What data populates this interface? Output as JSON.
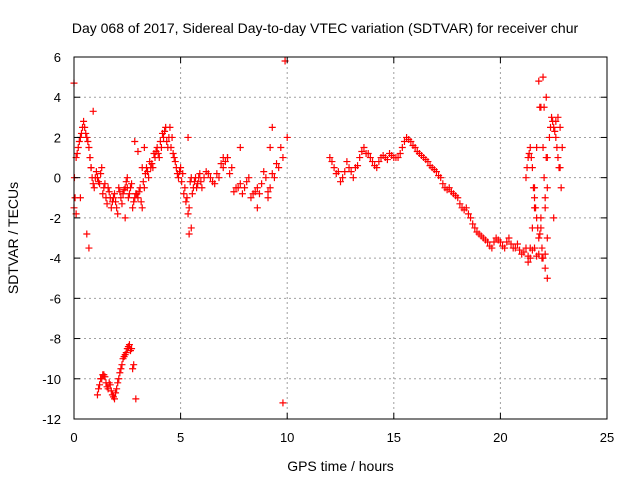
{
  "chart_data": {
    "type": "scatter",
    "title": "Day 068 of 2017, Sidereal Day-to-day VTEC variation (SDTVAR) for receiver chur",
    "xlabel": "GPS time / hours",
    "ylabel": "SDTVAR / TECUs",
    "xlim": [
      0,
      25
    ],
    "ylim": [
      -12,
      6
    ],
    "xticks": [
      0,
      5,
      10,
      15,
      20,
      25
    ],
    "yticks": [
      -12,
      -10,
      -8,
      -6,
      -4,
      -2,
      0,
      2,
      4,
      6
    ],
    "grid": true,
    "marker": "+",
    "color": "#ff0000",
    "series": [
      {
        "name": "SDTVAR",
        "x": [
          0.0,
          0.1,
          0.2,
          0.3,
          0.4,
          0.5,
          0.6,
          0.7,
          0.8,
          0.9,
          1.0,
          1.1,
          1.2,
          1.3,
          1.4,
          1.5,
          1.6,
          1.7,
          1.8,
          1.9,
          2.0,
          2.1,
          2.2,
          2.3,
          2.4,
          2.5,
          2.6,
          2.7,
          2.8,
          2.9,
          3.0,
          3.1,
          3.2,
          3.3,
          3.4,
          3.5,
          3.6,
          3.7,
          3.8,
          3.9,
          4.0,
          4.1,
          4.2,
          4.3,
          4.4,
          4.5,
          4.6,
          4.7,
          4.8,
          4.9,
          5.0,
          5.1,
          5.2,
          5.3,
          5.4,
          5.5,
          5.6,
          5.7,
          5.8,
          5.9,
          6.0,
          6.2,
          6.4,
          6.6,
          6.8,
          7.0,
          7.2,
          7.4,
          7.6,
          7.8,
          8.0,
          8.2,
          8.4,
          8.6,
          8.8,
          9.0,
          9.2,
          9.4,
          9.6,
          9.8,
          10.0,
          0.05,
          0.15,
          0.25,
          0.35,
          0.45,
          0.55,
          0.65,
          0.75,
          0.85,
          0.95,
          1.05,
          1.15,
          1.25,
          1.35,
          1.45,
          1.55,
          1.65,
          1.75,
          1.85,
          1.95,
          2.05,
          2.15,
          2.25,
          2.35,
          2.45,
          2.55,
          2.65,
          2.75,
          2.85,
          2.95,
          3.05,
          3.15,
          3.25,
          3.35,
          3.45,
          3.55,
          3.65,
          3.75,
          3.85,
          3.95,
          4.05,
          4.15,
          4.25,
          4.35,
          4.45,
          4.55,
          4.65,
          4.75,
          4.85,
          4.95,
          5.05,
          5.15,
          5.25,
          5.35,
          5.45,
          5.55,
          5.65,
          5.75,
          5.85,
          5.95,
          6.1,
          6.3,
          6.5,
          6.7,
          6.9,
          7.1,
          7.3,
          7.5,
          7.7,
          7.9,
          8.1,
          8.3,
          8.5,
          8.7,
          8.9,
          9.1,
          9.3,
          9.5,
          9.7,
          9.9,
          0.0,
          0.02,
          0.1,
          0.3,
          0.6,
          0.7,
          0.75,
          0.8,
          0.9,
          3.3,
          3.2,
          2.5,
          2.4,
          5.5,
          5.4,
          5.35,
          7.2,
          7.0,
          7.8,
          8.6,
          9.1,
          9.2,
          9.3,
          9.8,
          1.1,
          1.2,
          1.3,
          1.4,
          1.5,
          1.6,
          1.7,
          1.8,
          1.9,
          2.0,
          2.1,
          2.2,
          2.3,
          2.4,
          2.5,
          2.6,
          2.7,
          2.8,
          2.9,
          1.15,
          1.25,
          1.35,
          1.45,
          1.55,
          1.65,
          1.75,
          1.85,
          1.95,
          2.05,
          2.15,
          2.25,
          2.35,
          2.45,
          2.55,
          2.65,
          2.75,
          2.85,
          3.0,
          12.0,
          12.2,
          12.4,
          12.6,
          12.8,
          13.0,
          13.2,
          13.4,
          13.6,
          13.8,
          14.0,
          14.2,
          14.4,
          14.6,
          14.8,
          15.0,
          15.2,
          15.4,
          15.6,
          15.8,
          16.0,
          16.2,
          16.4,
          16.6,
          16.8,
          17.0,
          17.2,
          17.4,
          17.6,
          17.8,
          18.0,
          18.2,
          18.4,
          18.6,
          18.8,
          19.0,
          19.2,
          19.4,
          19.6,
          19.8,
          20.0,
          20.2,
          20.4,
          20.6,
          20.8,
          21.0,
          21.2,
          21.4,
          21.6,
          21.8,
          22.0,
          22.2,
          12.1,
          12.3,
          12.5,
          12.7,
          12.9,
          13.1,
          13.3,
          13.5,
          13.7,
          13.9,
          14.1,
          14.3,
          14.5,
          14.7,
          14.9,
          15.1,
          15.3,
          15.5,
          15.7,
          15.9,
          16.1,
          16.3,
          16.5,
          16.7,
          16.9,
          17.1,
          17.3,
          17.5,
          17.7,
          17.9,
          18.1,
          18.3,
          18.5,
          18.7,
          18.9,
          19.1,
          19.3,
          19.5,
          19.7,
          19.9,
          20.1,
          20.3,
          20.5,
          20.7,
          20.9,
          21.1,
          21.3,
          21.5,
          21.7,
          21.9,
          22.1,
          21.2,
          21.3,
          21.4,
          21.5,
          21.6,
          21.7,
          21.8,
          21.9,
          22.0,
          22.1,
          22.2,
          21.25,
          21.35,
          21.45,
          21.55,
          21.65,
          21.75,
          21.85,
          21.95,
          22.05,
          22.15,
          21.9,
          22.0,
          22.1,
          22.2,
          21.8,
          21.85,
          21.95,
          22.05,
          22.15,
          22.3,
          22.4,
          22.5,
          22.6,
          22.7,
          22.8,
          22.9,
          22.35,
          22.45,
          22.55,
          22.65,
          22.75,
          22.85,
          21.6,
          21.5,
          21.4,
          21.3,
          22.2,
          22.1,
          21.7,
          21.6,
          22.5,
          22.6,
          22.7,
          22.8
        ],
        "y": [
          -1.5,
          1.0,
          1.5,
          2.0,
          2.5,
          2.5,
          2.0,
          1.5,
          0.5,
          -0.3,
          0.0,
          0.0,
          -0.3,
          0.5,
          -0.5,
          -1.0,
          -0.5,
          -1.0,
          -1.2,
          -0.8,
          -1.5,
          -0.5,
          -1.0,
          -0.8,
          -0.5,
          0.0,
          -0.8,
          -0.3,
          -1.2,
          -0.8,
          -1.0,
          -0.5,
          -1.5,
          -0.5,
          0.5,
          0.0,
          0.5,
          0.5,
          1.0,
          1.5,
          1.0,
          1.5,
          2.0,
          2.5,
          1.5,
          2.5,
          2.0,
          1.0,
          0.5,
          0.0,
          0.5,
          0.2,
          -0.5,
          -1.0,
          -1.5,
          0.0,
          -0.5,
          0.0,
          -0.3,
          0.2,
          -0.5,
          0.3,
          0.0,
          -0.3,
          0.0,
          0.5,
          1.0,
          0.5,
          -0.5,
          -0.3,
          -0.5,
          0.0,
          -0.8,
          -0.5,
          -0.3,
          0.0,
          -0.5,
          0.0,
          0.5,
          1.0,
          2.0,
          -1.0,
          1.2,
          1.8,
          2.2,
          2.8,
          2.2,
          1.8,
          1.0,
          0.0,
          -0.5,
          0.3,
          -0.2,
          0.2,
          -0.8,
          -0.3,
          -1.3,
          -0.7,
          -1.5,
          -1.0,
          -1.2,
          -1.8,
          -0.7,
          -1.3,
          -0.6,
          -0.2,
          -1.0,
          -0.5,
          -1.5,
          -1.0,
          -0.8,
          -0.7,
          -1.2,
          -0.2,
          0.2,
          0.3,
          0.8,
          0.7,
          1.2,
          1.3,
          1.2,
          1.8,
          2.2,
          2.3,
          1.8,
          2.0,
          1.5,
          1.2,
          0.8,
          0.2,
          0.3,
          -0.2,
          -0.8,
          -1.2,
          -1.8,
          -0.2,
          -0.8,
          -0.2,
          -0.5,
          0.0,
          -0.2,
          0.0,
          0.2,
          -0.2,
          0.2,
          0.7,
          0.8,
          0.2,
          -0.7,
          -0.5,
          -0.8,
          -0.2,
          -1.0,
          -0.7,
          -0.8,
          0.3,
          -0.7,
          0.2,
          0.7,
          1.5,
          5.8,
          4.7,
          0.0,
          -1.8,
          -1.0,
          -2.8,
          -3.5,
          1.0,
          0.5,
          3.3,
          1.5,
          0.5,
          -0.5,
          -2.0,
          -2.5,
          -2.8,
          2.0,
          1.0,
          1.0,
          1.5,
          -1.5,
          -1.0,
          1.5,
          2.5,
          -11.2,
          -10.8,
          -10.3,
          -10.0,
          -9.8,
          -10.2,
          -10.5,
          -10.3,
          -10.8,
          -11.0,
          -10.5,
          -10.0,
          -9.5,
          -9.0,
          -8.8,
          -8.5,
          -8.3,
          -8.5,
          -9.3,
          -11.0,
          -10.5,
          -10.0,
          -9.8,
          -9.9,
          -10.4,
          -10.2,
          -10.6,
          -10.9,
          -10.7,
          -10.2,
          -9.7,
          -9.3,
          -8.9,
          -8.7,
          -8.4,
          -8.6,
          -9.5,
          1.8,
          1.3,
          1.0,
          0.5,
          0.3,
          0.0,
          0.8,
          0.3,
          0.5,
          1.0,
          1.5,
          1.2,
          0.8,
          0.5,
          1.0,
          1.0,
          1.2,
          1.0,
          1.0,
          1.5,
          2.0,
          1.8,
          1.5,
          1.2,
          1.0,
          0.8,
          0.5,
          0.3,
          0.0,
          -0.5,
          -0.5,
          -0.8,
          -1.0,
          -1.5,
          -1.5,
          -2.0,
          -2.5,
          -2.8,
          -3.0,
          -3.2,
          -3.5,
          -3.0,
          -3.2,
          -3.5,
          -3.0,
          -3.5,
          -3.3,
          -3.8,
          -3.5,
          -4.0,
          -3.5,
          -3.8,
          1.5,
          1.0,
          0.8,
          0.2,
          -0.2,
          0.3,
          0.5,
          0.0,
          0.6,
          1.3,
          1.2,
          1.0,
          0.6,
          0.8,
          1.1,
          0.9,
          1.1,
          1.0,
          1.2,
          1.8,
          1.9,
          1.6,
          1.3,
          1.1,
          0.9,
          0.6,
          0.4,
          0.1,
          -0.3,
          -0.6,
          -0.7,
          -0.9,
          -1.3,
          -1.6,
          -1.8,
          -2.3,
          -2.7,
          -2.9,
          -3.1,
          -3.4,
          -3.2,
          -3.1,
          -3.4,
          -3.2,
          -3.3,
          -3.5,
          -3.6,
          -3.7,
          -3.9,
          -3.6,
          -3.9,
          -2.0,
          -1.0,
          0.0,
          1.0,
          1.5,
          0.5,
          -1.0,
          -2.0,
          -3.0,
          -2.5,
          -4.0,
          -1.5,
          -0.5,
          0.5,
          1.2,
          1.0,
          -0.5,
          -1.5,
          -2.5,
          -2.8,
          -3.5,
          3.5,
          4.0,
          3.5,
          5.0,
          -4.5,
          -5.0,
          4.8,
          3.5,
          -4.0,
          0.0,
          1.0,
          2.0,
          3.0,
          2.5,
          2.0,
          1.0,
          0.5,
          1.5,
          2.5,
          2.8,
          2.3,
          1.5,
          0.5,
          -0.5,
          -1.5,
          -2.5,
          -3.5,
          -4.2,
          -3.0,
          -3.8,
          1.5,
          -0.5,
          -2.0,
          2.8,
          3.0,
          2.5
        ]
      }
    ]
  }
}
